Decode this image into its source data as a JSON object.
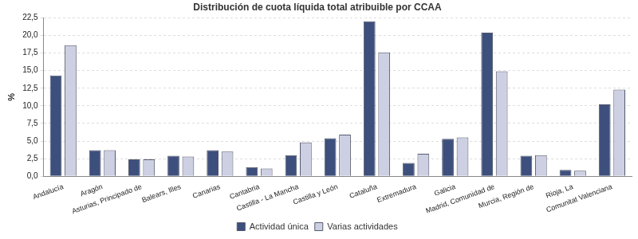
{
  "chart_data": {
    "type": "bar",
    "title": "Distribución de cuota líquida total atribuible por CCAA",
    "y_label": "%",
    "categories": [
      "Andalucía",
      "Aragón",
      "Asturias, Principado de",
      "Balears, Illes",
      "Canarias",
      "Cantabria",
      "Castilla - La Mancha",
      "Castilla y León",
      "Cataluña",
      "Extremadura",
      "Galicia",
      "Madrid, Comunidad de",
      "Murcia, Región de",
      "Rioja, La",
      "Comunitat Valenciana"
    ],
    "series": [
      {
        "name": "Actividad única",
        "color": "#3d4f7c",
        "values": [
          14.3,
          3.7,
          2.4,
          2.9,
          3.7,
          1.3,
          3.0,
          5.4,
          22.0,
          1.9,
          5.3,
          20.4,
          2.9,
          0.9,
          10.2
        ]
      },
      {
        "name": "Varias actividades",
        "color": "#cdd0e3",
        "values": [
          18.6,
          3.7,
          2.4,
          2.8,
          3.5,
          1.1,
          4.8,
          5.9,
          17.6,
          3.2,
          5.5,
          14.9,
          3.0,
          0.8,
          12.3
        ]
      }
    ],
    "ylim": [
      0,
      22.5
    ],
    "yticks": [
      {
        "value": 0,
        "label": "0,0"
      },
      {
        "value": 2.5,
        "label": "2,5"
      },
      {
        "value": 5,
        "label": "5,0"
      },
      {
        "value": 7.5,
        "label": "7,5"
      },
      {
        "value": 10,
        "label": "10,0"
      },
      {
        "value": 12.5,
        "label": "12,5"
      },
      {
        "value": 15,
        "label": "15,0"
      },
      {
        "value": 17.5,
        "label": "17,5"
      },
      {
        "value": 20,
        "label": "20,0"
      },
      {
        "value": 22.5,
        "label": "22,5"
      }
    ],
    "grid": true,
    "legend": "bottom"
  }
}
